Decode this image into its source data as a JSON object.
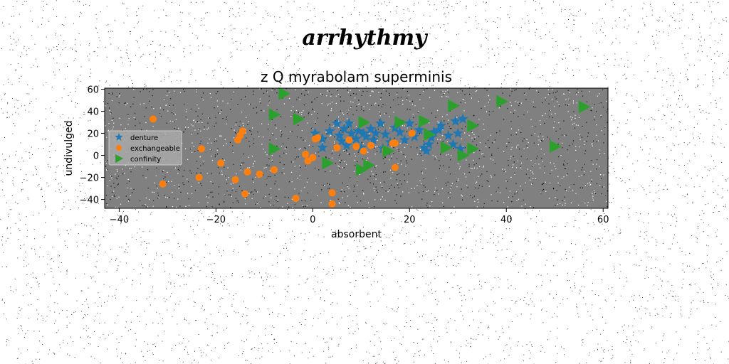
{
  "page": {
    "suptitle": "arrhythmy",
    "background": "#ffffff",
    "speckle_color": "#000000"
  },
  "chart_data": {
    "type": "scatter",
    "title": "z Q myrabolam superminis",
    "xlabel": "absorbent",
    "ylabel": "undivulged",
    "xlim": [
      -43,
      61
    ],
    "ylim": [
      -48,
      61
    ],
    "xticks": [
      -40,
      -20,
      0,
      20,
      40,
      60
    ],
    "yticks": [
      -40,
      -20,
      0,
      20,
      40,
      60
    ],
    "plot_background": "#808080",
    "grid": false,
    "legend_position": "center-left",
    "series": [
      {
        "name": "denture",
        "marker": "star",
        "color": "#1f77b4",
        "points": [
          [
            0.5,
            20
          ],
          [
            2,
            15
          ],
          [
            2,
            7
          ],
          [
            3.5,
            22
          ],
          [
            5,
            29
          ],
          [
            5.5,
            18
          ],
          [
            6,
            13
          ],
          [
            6.5,
            24
          ],
          [
            7,
            9
          ],
          [
            7.5,
            29
          ],
          [
            8,
            20
          ],
          [
            9,
            15
          ],
          [
            9.5,
            22
          ],
          [
            10,
            7
          ],
          [
            10.5,
            20
          ],
          [
            11,
            17
          ],
          [
            12,
            24
          ],
          [
            12.5,
            14
          ],
          [
            13,
            20
          ],
          [
            14,
            29
          ],
          [
            14.5,
            6
          ],
          [
            15,
            19
          ],
          [
            16,
            12
          ],
          [
            17,
            25
          ],
          [
            18,
            21
          ],
          [
            19,
            14
          ],
          [
            20,
            29
          ],
          [
            21,
            17
          ],
          [
            22,
            23
          ],
          [
            23,
            7
          ],
          [
            23.5,
            4
          ],
          [
            24,
            10
          ],
          [
            24.5,
            16
          ],
          [
            25,
            21
          ],
          [
            26,
            23
          ],
          [
            26.5,
            27
          ],
          [
            28,
            18
          ],
          [
            29,
            10
          ],
          [
            29.5,
            31
          ],
          [
            30,
            20
          ],
          [
            30.5,
            6
          ],
          [
            31,
            33
          ]
        ]
      },
      {
        "name": "exchangeable",
        "marker": "circle",
        "color": "#ff7f0e",
        "points": [
          [
            -33,
            33
          ],
          [
            -31,
            -26
          ],
          [
            -23,
            6
          ],
          [
            -23.5,
            -20
          ],
          [
            -19,
            -7
          ],
          [
            -16,
            -22
          ],
          [
            -15.5,
            14
          ],
          [
            -15,
            18
          ],
          [
            -14.5,
            22
          ],
          [
            -14,
            -35
          ],
          [
            -13.5,
            -15
          ],
          [
            -11,
            -17
          ],
          [
            -8,
            -13
          ],
          [
            -3.5,
            -39
          ],
          [
            -1.5,
            1
          ],
          [
            -1,
            -5
          ],
          [
            0,
            -2
          ],
          [
            0.5,
            15
          ],
          [
            1,
            16
          ],
          [
            4,
            -34
          ],
          [
            4,
            -44
          ],
          [
            5,
            7
          ],
          [
            7.5,
            14
          ],
          [
            9,
            8
          ],
          [
            10.5,
            4
          ],
          [
            12,
            9
          ],
          [
            15,
            5
          ],
          [
            16.5,
            11
          ],
          [
            17,
            11
          ],
          [
            17,
            -11
          ],
          [
            20.5,
            20
          ]
        ]
      },
      {
        "name": "confinity",
        "marker": "triangle-right",
        "color": "#2ca02c",
        "points": [
          [
            -6,
            56
          ],
          [
            -8,
            37
          ],
          [
            -8,
            6
          ],
          [
            -3,
            33
          ],
          [
            3,
            -7
          ],
          [
            10,
            -13
          ],
          [
            10.5,
            30
          ],
          [
            11.5,
            -9
          ],
          [
            15.5,
            4
          ],
          [
            18,
            30
          ],
          [
            23,
            31
          ],
          [
            24,
            19
          ],
          [
            27.5,
            7
          ],
          [
            29,
            45
          ],
          [
            31,
            0
          ],
          [
            33,
            6
          ],
          [
            33,
            27
          ],
          [
            39,
            49
          ],
          [
            50,
            8
          ],
          [
            56,
            44
          ]
        ]
      }
    ]
  }
}
